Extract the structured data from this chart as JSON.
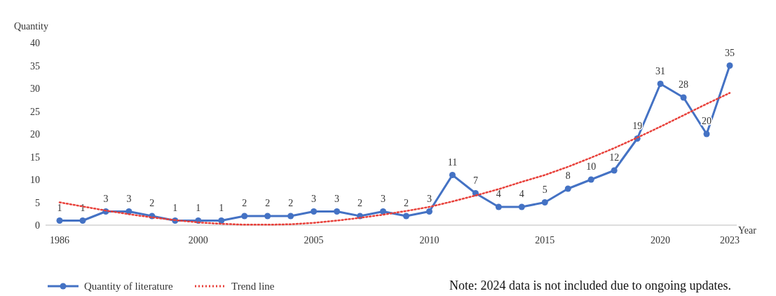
{
  "chart_data": {
    "type": "line",
    "ylabel": "Quantity",
    "xlabel": "Year",
    "categories": [
      "1986",
      null,
      null,
      null,
      null,
      null,
      "2000",
      null,
      null,
      null,
      null,
      "2005",
      null,
      null,
      null,
      null,
      "2010",
      null,
      null,
      null,
      null,
      "2015",
      null,
      null,
      null,
      null,
      "2020",
      null,
      null,
      "2023"
    ],
    "series": [
      {
        "name": "Quantity of literature",
        "color": "#4472c4",
        "marker": "circle",
        "line_style": "solid",
        "values": [
          1,
          1,
          3,
          3,
          2,
          1,
          1,
          1,
          2,
          2,
          2,
          3,
          3,
          2,
          3,
          2,
          3,
          11,
          7,
          4,
          4,
          5,
          8,
          10,
          12,
          19,
          31,
          28,
          20,
          35
        ],
        "value_labels": [
          "1",
          "1",
          "3",
          "3",
          "2",
          "1",
          "1",
          "1",
          "2",
          "2",
          "2",
          "3",
          "3",
          "2",
          "3",
          "2",
          "3",
          "11",
          "7",
          "4",
          "4",
          "5",
          "8",
          "10",
          "12",
          "19",
          "31",
          "28",
          "20",
          "35"
        ]
      },
      {
        "name": "Trend line",
        "color": "#e8403a",
        "marker": "none",
        "line_style": "dotted",
        "values": [
          5,
          4.1,
          3.2,
          2.4,
          1.7,
          1.1,
          0.6,
          0.3,
          0.1,
          0.1,
          0.2,
          0.5,
          1,
          1.6,
          2.3,
          3.1,
          4,
          5.2,
          6.5,
          7.9,
          9.5,
          11,
          12.8,
          14.8,
          16.9,
          19.2,
          21.6,
          24.1,
          26.6,
          29
        ]
      }
    ],
    "ylim": [
      0,
      40
    ],
    "yticks": [
      0,
      5,
      10,
      15,
      20,
      25,
      30,
      35,
      40
    ],
    "grid": false,
    "legend": "bottom left",
    "annotations": [
      "Note: 2024 data is not included due to ongoing updates."
    ]
  }
}
